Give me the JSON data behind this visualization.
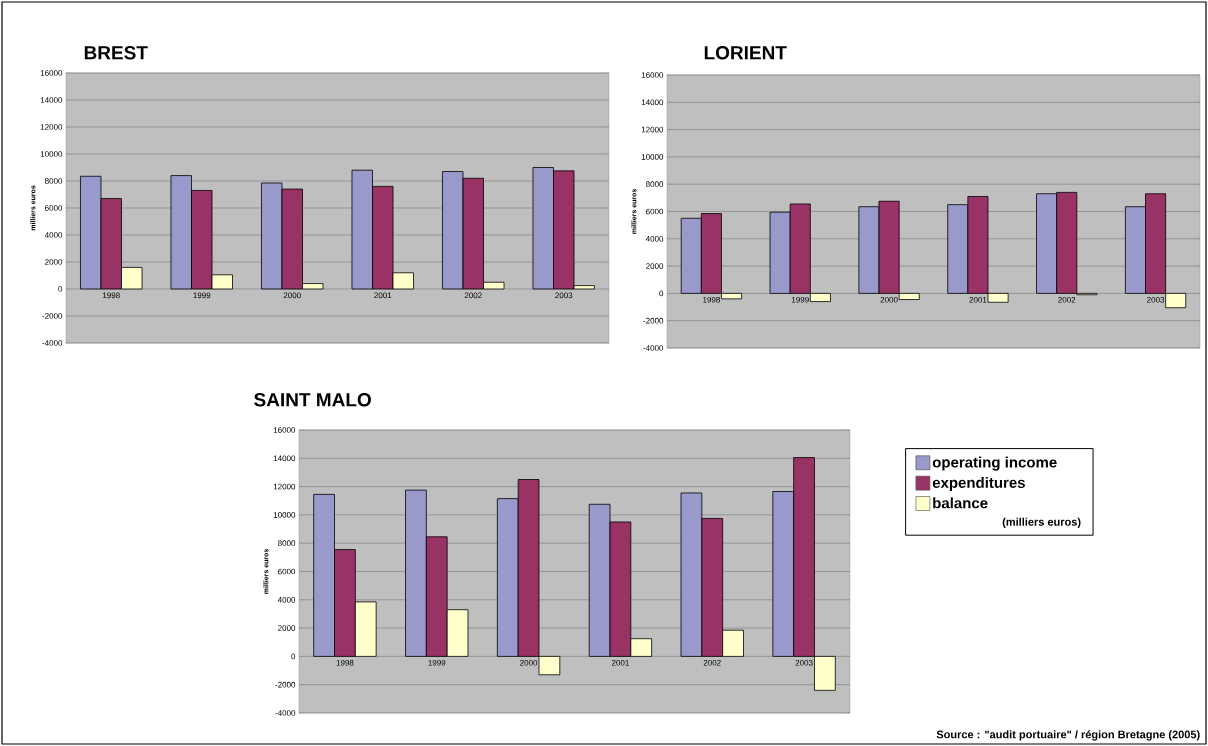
{
  "chart_data": [
    {
      "type": "bar",
      "title": "BREST",
      "ylabel": "milliers euros",
      "categories": [
        "1998",
        "1999",
        "2000",
        "2001",
        "2002",
        "2003"
      ],
      "series": [
        {
          "color": "#9999cc",
          "values": [
            8350,
            8400,
            7850,
            8800,
            8700,
            9000
          ]
        },
        {
          "color": "#993366",
          "values": [
            6700,
            7300,
            7400,
            7600,
            8200,
            8750
          ]
        },
        {
          "color": "#ffffcc",
          "values": [
            1600,
            1050,
            400,
            1200,
            500,
            250
          ]
        }
      ],
      "ylim": [
        -4000,
        16000
      ],
      "yticks": [
        -4000,
        -2000,
        0,
        2000,
        4000,
        6000,
        8000,
        10000,
        12000,
        14000,
        16000
      ],
      "grid": "y",
      "legend": false
    },
    {
      "type": "bar",
      "title": "LORIENT",
      "ylabel": "milliers euros",
      "categories": [
        "1998",
        "1999",
        "2000",
        "2001",
        "2002",
        "2003"
      ],
      "series": [
        {
          "color": "#9999cc",
          "values": [
            5500,
            5950,
            6350,
            6500,
            7300,
            6350
          ]
        },
        {
          "color": "#993366",
          "values": [
            5850,
            6550,
            6750,
            7100,
            7400,
            7300
          ]
        },
        {
          "color": "#ffffcc",
          "values": [
            -400,
            -600,
            -450,
            -650,
            -100,
            -1050
          ]
        }
      ],
      "ylim": [
        -4000,
        16000
      ],
      "yticks": [
        -4000,
        -2000,
        0,
        2000,
        4000,
        6000,
        8000,
        10000,
        12000,
        14000,
        16000
      ],
      "grid": "y",
      "legend": false
    },
    {
      "type": "bar",
      "title": "SAINT MALO",
      "ylabel": "milliers euros",
      "categories": [
        "1998",
        "1999",
        "2000",
        "2001",
        "2002",
        "2003"
      ],
      "series": [
        {
          "name": "operating income",
          "color": "#9999cc",
          "values": [
            11450,
            11750,
            11150,
            10750,
            11550,
            11650
          ]
        },
        {
          "name": "expenditures",
          "color": "#993366",
          "values": [
            7550,
            8450,
            12500,
            9500,
            9750,
            14050
          ]
        },
        {
          "name": "balance",
          "color": "#ffffcc",
          "values": [
            3850,
            3300,
            -1300,
            1250,
            1850,
            -2400
          ]
        }
      ],
      "legend_title": "(milliers euros)",
      "annotations": [
        "Source : \"audit portuaire\" / région Bretagne (2005)"
      ],
      "ylim": [
        -4000,
        16000
      ],
      "yticks": [
        -4000,
        -2000,
        0,
        2000,
        4000,
        6000,
        8000,
        10000,
        12000,
        14000,
        16000
      ],
      "grid": "y",
      "legend": "right"
    }
  ]
}
